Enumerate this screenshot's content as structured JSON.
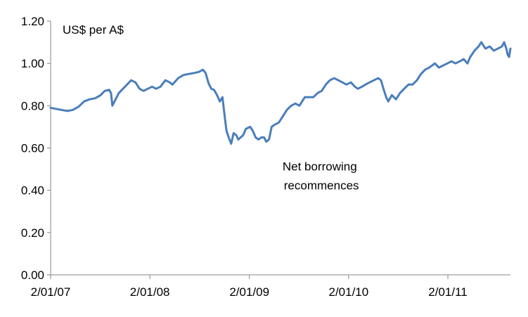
{
  "chart_data": {
    "type": "line",
    "title": "",
    "xlabel": "",
    "ylabel": "",
    "unit_label": "US$ per A$",
    "annotation": {
      "lines": [
        "Net borrowing",
        "recommences"
      ],
      "x": "2009-03-01",
      "y": 0.62
    },
    "xlim": [
      "2007-01-02",
      "2011-08-20"
    ],
    "ylim": [
      0,
      1.2
    ],
    "y_ticks": [
      0.0,
      0.2,
      0.4,
      0.6,
      0.8,
      1.0,
      1.2
    ],
    "y_tick_labels": [
      "0.00",
      "0.20",
      "0.40",
      "0.60",
      "0.80",
      "1.00",
      "1.20"
    ],
    "x_ticks": [
      "2007-01-02",
      "2008-01-02",
      "2009-01-02",
      "2010-01-02",
      "2011-01-02"
    ],
    "x_tick_labels": [
      "2/01/07",
      "2/01/08",
      "2/01/09",
      "2/01/10",
      "2/01/11"
    ],
    "grid": false,
    "legend": "none",
    "series": [
      {
        "color": "#4a7ebb",
        "x": [
          "2007-01-02",
          "2007-01-20",
          "2007-02-10",
          "2007-03-05",
          "2007-03-25",
          "2007-04-15",
          "2007-05-05",
          "2007-05-25",
          "2007-06-15",
          "2007-07-05",
          "2007-07-20",
          "2007-08-05",
          "2007-08-12",
          "2007-08-17",
          "2007-08-25",
          "2007-09-10",
          "2007-09-25",
          "2007-10-10",
          "2007-10-25",
          "2007-11-10",
          "2007-11-25",
          "2007-12-10",
          "2007-12-25",
          "2008-01-10",
          "2008-01-25",
          "2008-02-10",
          "2008-02-28",
          "2008-03-15",
          "2008-03-25",
          "2008-04-15",
          "2008-05-05",
          "2008-05-25",
          "2008-06-15",
          "2008-07-01",
          "2008-07-15",
          "2008-07-25",
          "2008-08-05",
          "2008-08-15",
          "2008-08-25",
          "2008-09-05",
          "2008-09-15",
          "2008-09-25",
          "2008-10-05",
          "2008-10-10",
          "2008-10-18",
          "2008-10-27",
          "2008-11-05",
          "2008-11-15",
          "2008-11-22",
          "2008-12-01",
          "2008-12-10",
          "2008-12-20",
          "2009-01-05",
          "2009-01-15",
          "2009-01-25",
          "2009-02-05",
          "2009-02-15",
          "2009-02-25",
          "2009-03-05",
          "2009-03-15",
          "2009-03-25",
          "2009-04-05",
          "2009-04-20",
          "2009-05-05",
          "2009-05-20",
          "2009-06-05",
          "2009-06-20",
          "2009-07-05",
          "2009-07-15",
          "2009-07-25",
          "2009-08-10",
          "2009-08-25",
          "2009-09-10",
          "2009-09-25",
          "2009-10-10",
          "2009-10-25",
          "2009-11-10",
          "2009-11-25",
          "2009-12-10",
          "2009-12-25",
          "2010-01-10",
          "2010-01-25",
          "2010-02-05",
          "2010-02-20",
          "2010-03-05",
          "2010-03-20",
          "2010-04-05",
          "2010-04-20",
          "2010-05-01",
          "2010-05-10",
          "2010-05-20",
          "2010-05-28",
          "2010-06-10",
          "2010-06-25",
          "2010-07-10",
          "2010-07-25",
          "2010-08-10",
          "2010-08-25",
          "2010-09-10",
          "2010-09-25",
          "2010-10-10",
          "2010-10-25",
          "2010-11-05",
          "2010-11-15",
          "2010-11-30",
          "2010-12-15",
          "2010-12-31",
          "2011-01-15",
          "2011-01-30",
          "2011-02-15",
          "2011-03-01",
          "2011-03-15",
          "2011-03-25",
          "2011-04-10",
          "2011-04-25",
          "2011-05-05",
          "2011-05-20",
          "2011-06-05",
          "2011-06-20",
          "2011-07-05",
          "2011-07-20",
          "2011-07-28",
          "2011-08-05",
          "2011-08-10",
          "2011-08-15",
          "2011-08-20"
        ],
        "y": [
          0.79,
          0.785,
          0.78,
          0.775,
          0.78,
          0.795,
          0.82,
          0.83,
          0.835,
          0.85,
          0.87,
          0.875,
          0.86,
          0.8,
          0.82,
          0.86,
          0.88,
          0.9,
          0.92,
          0.91,
          0.88,
          0.87,
          0.88,
          0.89,
          0.88,
          0.89,
          0.92,
          0.91,
          0.9,
          0.93,
          0.945,
          0.95,
          0.955,
          0.96,
          0.97,
          0.955,
          0.905,
          0.88,
          0.875,
          0.85,
          0.82,
          0.84,
          0.73,
          0.68,
          0.65,
          0.62,
          0.67,
          0.66,
          0.64,
          0.65,
          0.66,
          0.69,
          0.7,
          0.68,
          0.65,
          0.64,
          0.65,
          0.65,
          0.63,
          0.64,
          0.7,
          0.71,
          0.72,
          0.75,
          0.78,
          0.8,
          0.81,
          0.8,
          0.82,
          0.84,
          0.84,
          0.84,
          0.86,
          0.87,
          0.9,
          0.92,
          0.93,
          0.92,
          0.91,
          0.9,
          0.91,
          0.89,
          0.88,
          0.89,
          0.9,
          0.91,
          0.92,
          0.93,
          0.92,
          0.88,
          0.84,
          0.82,
          0.85,
          0.83,
          0.86,
          0.88,
          0.9,
          0.9,
          0.92,
          0.95,
          0.97,
          0.98,
          0.99,
          1.0,
          0.98,
          0.99,
          1.0,
          1.01,
          1.0,
          1.01,
          1.02,
          1.0,
          1.03,
          1.06,
          1.08,
          1.1,
          1.07,
          1.08,
          1.06,
          1.07,
          1.08,
          1.1,
          1.07,
          1.04,
          1.03,
          1.07
        ]
      }
    ]
  }
}
